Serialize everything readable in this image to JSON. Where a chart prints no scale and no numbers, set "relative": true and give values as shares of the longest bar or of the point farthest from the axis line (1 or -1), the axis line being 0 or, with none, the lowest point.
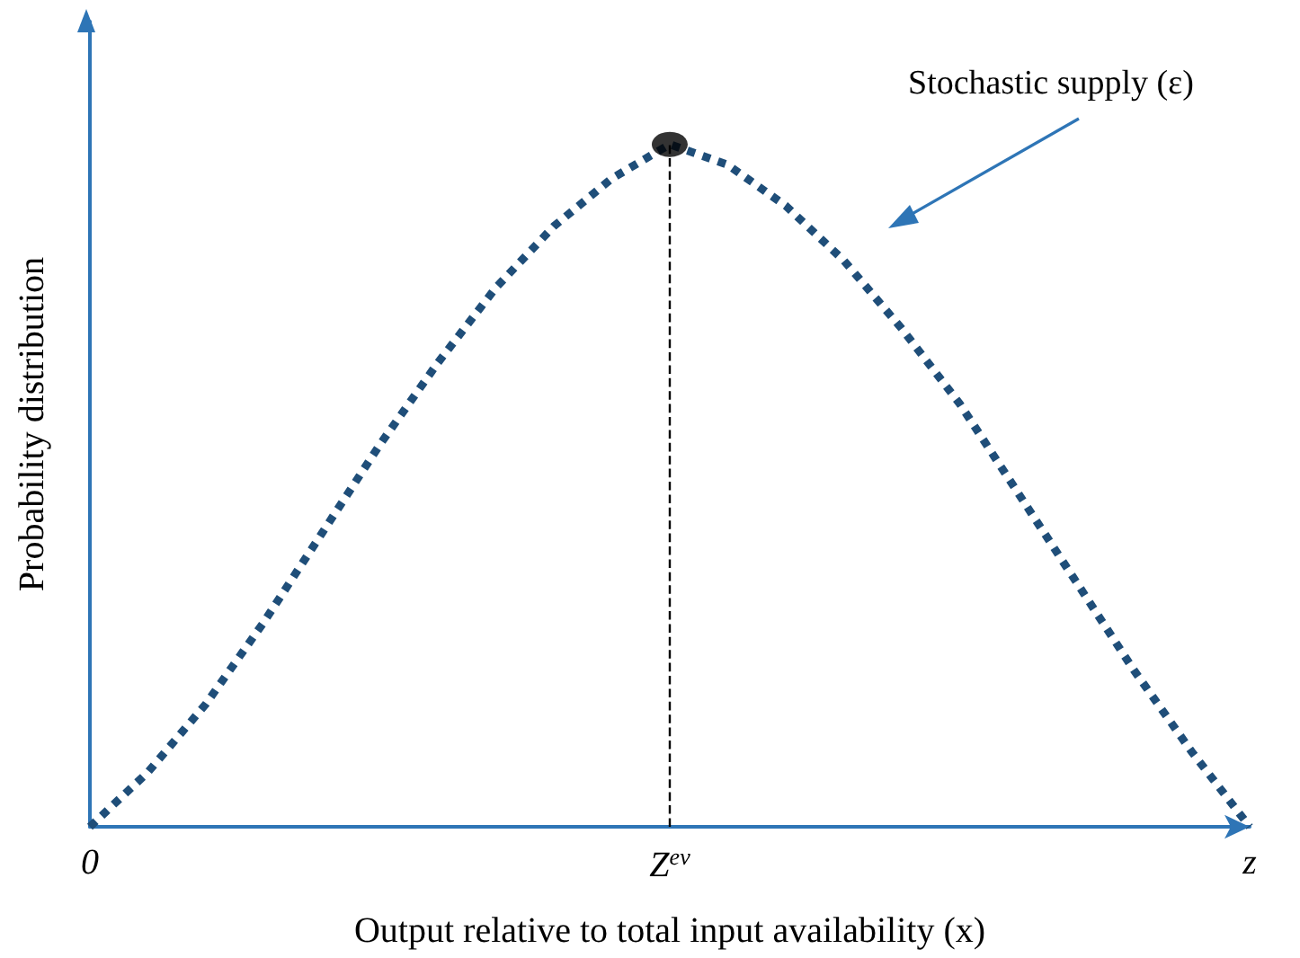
{
  "chart_data": {
    "type": "line",
    "relative": true,
    "xlabel": "Output relative to total input availability (x)",
    "ylabel": "Probability distribution",
    "categories": [
      "0",
      null,
      null,
      null,
      null,
      null,
      null,
      null,
      null,
      null,
      "Z$^{ev}$",
      null,
      null,
      null,
      null,
      null,
      null,
      null,
      null,
      null,
      "z"
    ],
    "series": [
      {
        "color": "#1f4e79",
        "line_style": "dotted",
        "marker": "none",
        "values": [
          0,
          0.08,
          0.18,
          0.3,
          0.43,
          0.56,
          0.68,
          0.79,
          0.88,
          0.95,
          1,
          0.97,
          0.91,
          0.83,
          0.73,
          0.62,
          0.49,
          0.36,
          0.23,
          0.11,
          0
        ]
      },
      {
        "type": "scatter",
        "color": "#000000",
        "marker": "circle",
        "x": [
          "Z$^{ev}$"
        ],
        "values": [
          1
        ]
      }
    ],
    "ref_lines": [
      {
        "axis": "x",
        "value": "Z$^{ev}$",
        "line_style": "dashed",
        "color": "#000000"
      }
    ],
    "annotations": [
      "Stochastic supply (ε)"
    ],
    "grid": false
  }
}
